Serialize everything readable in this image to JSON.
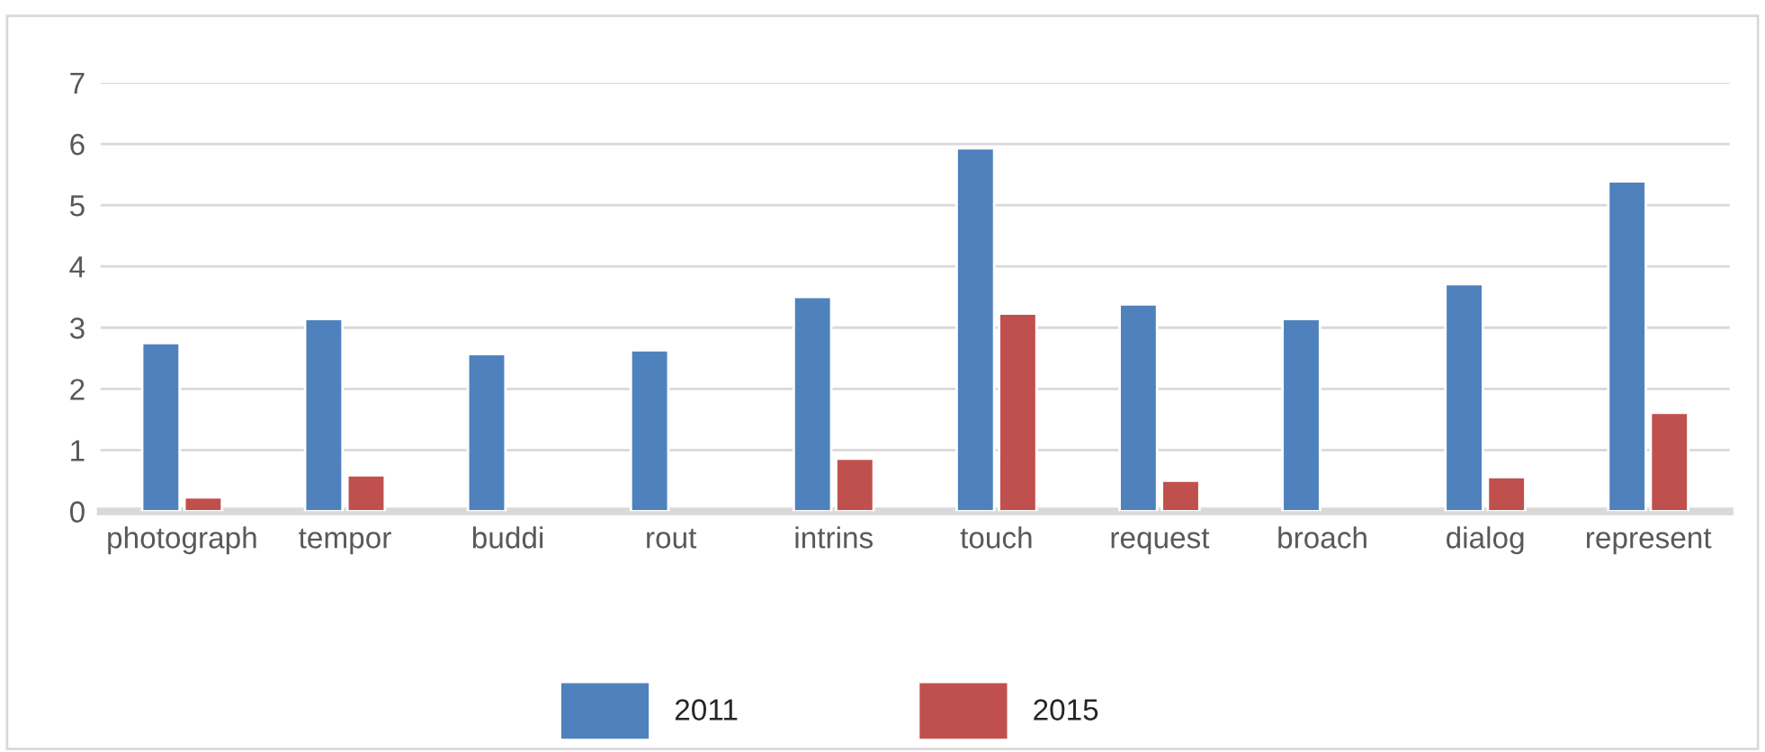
{
  "chart_data": {
    "type": "bar",
    "categories": [
      "photograph",
      "tempor",
      "buddi",
      "rout",
      "intrins",
      "touch",
      "request",
      "broach",
      "dialog",
      "represent"
    ],
    "series": [
      {
        "name": "2011",
        "color": "#4f81bd",
        "values": [
          2.75,
          3.14,
          2.57,
          2.63,
          3.5,
          5.93,
          3.38,
          3.14,
          3.71,
          5.39
        ]
      },
      {
        "name": "2015",
        "color": "#c0504d",
        "values": [
          0.23,
          0.59,
          null,
          null,
          0.86,
          3.23,
          0.5,
          null,
          0.56,
          1.61
        ]
      }
    ],
    "ylim": [
      0,
      7
    ],
    "yticks": [
      0,
      1,
      2,
      3,
      4,
      5,
      6,
      7
    ],
    "grid": "y",
    "legend": "bottom"
  }
}
